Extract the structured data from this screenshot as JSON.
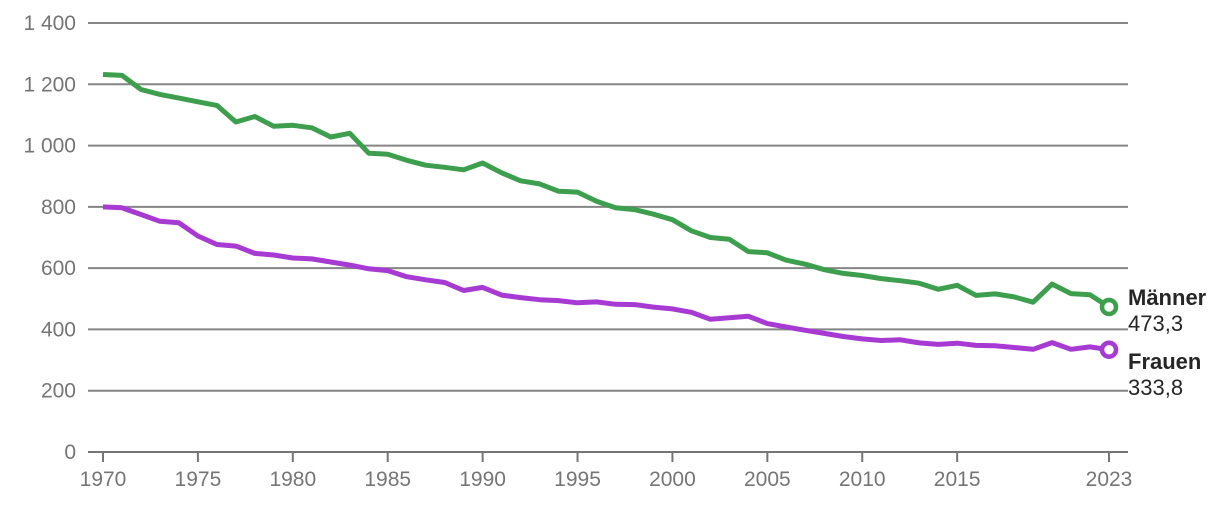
{
  "chart_data": {
    "type": "line",
    "title": "",
    "xlabel": "",
    "ylabel": "",
    "x_start_year": 1970,
    "x_end_year": 2023,
    "xlim": [
      1970,
      2023
    ],
    "ylim": [
      0,
      1400
    ],
    "grid": "horizontal",
    "legend_position": "right-end-labels",
    "x_ticks": [
      {
        "value": 1970,
        "label": "1970"
      },
      {
        "value": 1975,
        "label": "1975"
      },
      {
        "value": 1980,
        "label": "1980"
      },
      {
        "value": 1985,
        "label": "1985"
      },
      {
        "value": 1990,
        "label": "1990"
      },
      {
        "value": 1995,
        "label": "1995"
      },
      {
        "value": 2000,
        "label": "2000"
      },
      {
        "value": 2005,
        "label": "2005"
      },
      {
        "value": 2010,
        "label": "2010"
      },
      {
        "value": 2015,
        "label": "2015"
      },
      {
        "value": 2023,
        "label": "2023"
      }
    ],
    "y_ticks": [
      {
        "value": 0,
        "label": "0"
      },
      {
        "value": 200,
        "label": "200"
      },
      {
        "value": 400,
        "label": "400"
      },
      {
        "value": 600,
        "label": "600"
      },
      {
        "value": 800,
        "label": "800"
      },
      {
        "value": 1000,
        "label": "1 000"
      },
      {
        "value": 1200,
        "label": "1 200"
      },
      {
        "value": 1400,
        "label": "1 400"
      }
    ],
    "series": [
      {
        "name": "Männer",
        "color": "#3d9f4d",
        "end_value_label": "473,3",
        "marker": "open-circle",
        "values": [
          1232,
          1229,
          1183,
          1167,
          1155,
          1143,
          1131,
          1077,
          1095,
          1063,
          1066,
          1058,
          1028,
          1040,
          975,
          972,
          952,
          936,
          929,
          921,
          943,
          911,
          885,
          875,
          851,
          848,
          818,
          797,
          791,
          776,
          758,
          722,
          700,
          694,
          654,
          650,
          626,
          613,
          595,
          583,
          576,
          566,
          559,
          551,
          531,
          544,
          511,
          516,
          506,
          489,
          548,
          517,
          513,
          473.3
        ]
      },
      {
        "name": "Frauen",
        "color": "#a73ad3",
        "end_value_label": "333,8",
        "marker": "open-circle",
        "values": [
          800,
          797,
          775,
          753,
          748,
          705,
          677,
          672,
          648,
          643,
          633,
          630,
          620,
          610,
          598,
          592,
          572,
          562,
          553,
          527,
          537,
          512,
          504,
          497,
          494,
          487,
          490,
          482,
          481,
          473,
          467,
          456,
          433,
          438,
          443,
          419,
          408,
          397,
          387,
          377,
          369,
          364,
          366,
          356,
          351,
          355,
          348,
          347,
          341,
          335,
          357,
          335,
          343,
          333.8
        ]
      }
    ],
    "colors": {
      "background": "#ffffff",
      "grid": "#858585",
      "axis": "#757575",
      "tick_label": "#757575",
      "series_label": "#262626"
    }
  },
  "end_labels": {
    "maenner": {
      "name": "Männer",
      "value": "473,3"
    },
    "frauen": {
      "name": "Frauen",
      "value": "333,8"
    }
  }
}
